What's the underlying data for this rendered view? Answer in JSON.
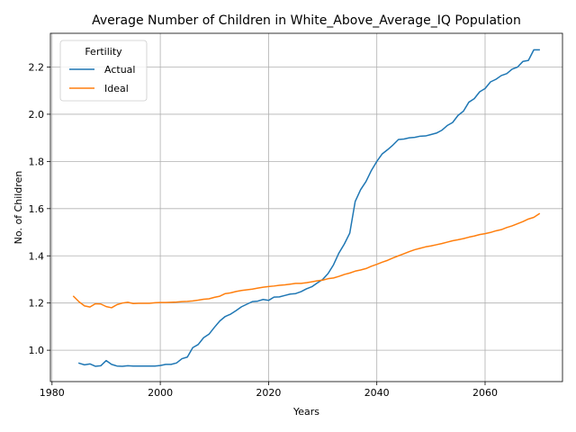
{
  "chart_data": {
    "type": "line",
    "title": "Average Number of Children in White_Above_Average_IQ Population",
    "xlabel": "Years",
    "ylabel": "No. of Children",
    "xlim": [
      1979.7,
      2074.3
    ],
    "ylim": [
      0.867,
      2.343
    ],
    "grid": true,
    "x_ticks": [
      1980,
      2000,
      2020,
      2040,
      2060
    ],
    "y_ticks": [
      1.0,
      1.2,
      1.4,
      1.6,
      1.8,
      2.0,
      2.2
    ],
    "x_tick_labels": [
      "1980",
      "2000",
      "2020",
      "2040",
      "2060"
    ],
    "y_tick_labels": [
      "1.0",
      "1.2",
      "1.4",
      "1.6",
      "1.8",
      "2.0",
      "2.2"
    ],
    "legend": {
      "title": "Fertility",
      "position": "top-left"
    },
    "series": [
      {
        "name": "Actual",
        "color": "#1f77b4",
        "x": [
          1985,
          1986,
          1987,
          1988,
          1989,
          1990,
          1991,
          1992,
          1993,
          1994,
          1995,
          1996,
          1997,
          1998,
          1999,
          2000,
          2001,
          2002,
          2003,
          2004,
          2005,
          2006,
          2007,
          2008,
          2009,
          2010,
          2011,
          2012,
          2013,
          2014,
          2015,
          2016,
          2017,
          2018,
          2019,
          2020,
          2021,
          2022,
          2023,
          2024,
          2025,
          2026,
          2027,
          2028,
          2029,
          2030,
          2031,
          2032,
          2033,
          2034,
          2035,
          2036,
          2037,
          2038,
          2039,
          2040,
          2041,
          2042,
          2043,
          2044,
          2045,
          2046,
          2047,
          2048,
          2049,
          2050,
          2051,
          2052,
          2053,
          2054,
          2055,
          2056,
          2057,
          2058,
          2059,
          2060,
          2061,
          2062,
          2063,
          2064,
          2065,
          2066,
          2067,
          2068,
          2069,
          2070
        ],
        "values": [
          0.945,
          0.938,
          0.942,
          0.932,
          0.934,
          0.956,
          0.94,
          0.933,
          0.932,
          0.934,
          0.933,
          0.933,
          0.933,
          0.933,
          0.933,
          0.935,
          0.94,
          0.94,
          0.946,
          0.964,
          0.971,
          1.011,
          1.024,
          1.053,
          1.068,
          1.097,
          1.124,
          1.143,
          1.153,
          1.168,
          1.184,
          1.195,
          1.206,
          1.208,
          1.215,
          1.211,
          1.225,
          1.226,
          1.232,
          1.238,
          1.24,
          1.248,
          1.26,
          1.269,
          1.285,
          1.3,
          1.325,
          1.362,
          1.412,
          1.45,
          1.496,
          1.63,
          1.68,
          1.715,
          1.762,
          1.8,
          1.832,
          1.85,
          1.87,
          1.893,
          1.895,
          1.9,
          1.902,
          1.907,
          1.908,
          1.914,
          1.92,
          1.932,
          1.952,
          1.965,
          1.995,
          2.013,
          2.051,
          2.066,
          2.095,
          2.109,
          2.137,
          2.148,
          2.164,
          2.172,
          2.191,
          2.2,
          2.224,
          2.228,
          2.273,
          2.273
        ]
      },
      {
        "name": "Ideal",
        "color": "#ff7f0e",
        "x": [
          1984,
          1985,
          1986,
          1987,
          1988,
          1989,
          1990,
          1991,
          1992,
          1993,
          1994,
          1995,
          1996,
          1997,
          1998,
          1999,
          2000,
          2001,
          2002,
          2003,
          2004,
          2005,
          2006,
          2007,
          2008,
          2009,
          2010,
          2011,
          2012,
          2013,
          2014,
          2015,
          2016,
          2017,
          2018,
          2019,
          2020,
          2021,
          2022,
          2023,
          2024,
          2025,
          2026,
          2027,
          2028,
          2029,
          2030,
          2031,
          2032,
          2033,
          2034,
          2035,
          2036,
          2037,
          2038,
          2039,
          2040,
          2041,
          2042,
          2043,
          2044,
          2045,
          2046,
          2047,
          2048,
          2049,
          2050,
          2051,
          2052,
          2053,
          2054,
          2055,
          2056,
          2057,
          2058,
          2059,
          2060,
          2061,
          2062,
          2063,
          2064,
          2065,
          2066,
          2067,
          2068,
          2069,
          2070
        ],
        "values": [
          1.228,
          1.205,
          1.188,
          1.183,
          1.197,
          1.196,
          1.185,
          1.18,
          1.193,
          1.2,
          1.203,
          1.198,
          1.199,
          1.199,
          1.199,
          1.201,
          1.202,
          1.202,
          1.203,
          1.204,
          1.206,
          1.207,
          1.209,
          1.212,
          1.216,
          1.218,
          1.224,
          1.229,
          1.24,
          1.243,
          1.249,
          1.253,
          1.256,
          1.259,
          1.263,
          1.267,
          1.27,
          1.272,
          1.275,
          1.277,
          1.28,
          1.283,
          1.283,
          1.286,
          1.29,
          1.294,
          1.297,
          1.303,
          1.306,
          1.313,
          1.321,
          1.327,
          1.335,
          1.34,
          1.346,
          1.356,
          1.364,
          1.373,
          1.381,
          1.391,
          1.4,
          1.409,
          1.418,
          1.426,
          1.432,
          1.438,
          1.442,
          1.447,
          1.452,
          1.458,
          1.464,
          1.468,
          1.473,
          1.479,
          1.484,
          1.49,
          1.494,
          1.499,
          1.506,
          1.511,
          1.52,
          1.527,
          1.536,
          1.545,
          1.556,
          1.563,
          1.578
        ]
      }
    ]
  }
}
